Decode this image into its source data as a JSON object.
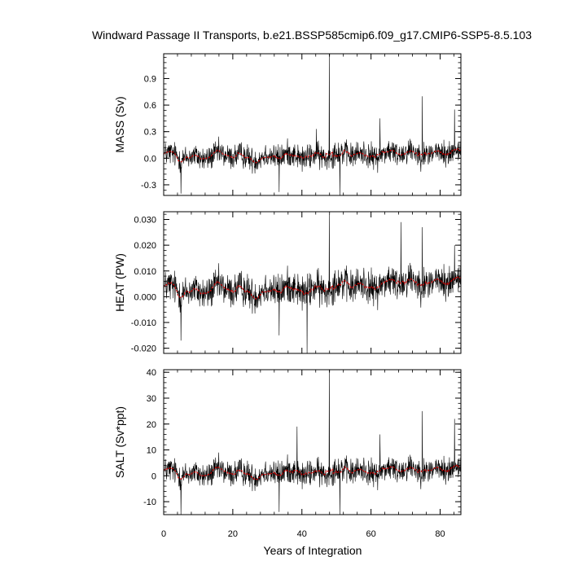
{
  "chart_data": {
    "type": "line",
    "title": "Windward Passage II Transports, b.e21.BSSP585cmip6.f09_g17.CMIP6-SSP5-8.5.103",
    "xlabel": "Years of Integration",
    "xlim": [
      0,
      86
    ],
    "x_ticks": [
      0,
      20,
      40,
      60,
      80
    ],
    "x_tick_labels": [
      "0",
      "20",
      "40",
      "60",
      "80"
    ],
    "series_colors": {
      "monthly": "#000000",
      "running_mean": "#cc0000"
    },
    "panels": [
      {
        "ylabel": "MASS (Sv)",
        "ylim": [
          -0.42,
          1.18
        ],
        "y_ticks": [
          -0.3,
          0.0,
          0.3,
          0.6,
          0.9
        ],
        "y_tick_labels": [
          "-0.3",
          "0.0",
          "0.3",
          "0.6",
          "0.9"
        ],
        "baseline": 0.02,
        "noise": 0.09,
        "trend": 0.045,
        "smooth_amp": 0.025,
        "spikes": [
          {
            "x": 47.9,
            "y": 1.18
          },
          {
            "x": 74.8,
            "y": 0.7
          },
          {
            "x": 44.2,
            "y": 0.33
          },
          {
            "x": 62.6,
            "y": 0.45
          },
          {
            "x": 51.0,
            "y": -0.42
          },
          {
            "x": 5.0,
            "y": -0.4
          },
          {
            "x": 33.4,
            "y": -0.38
          },
          {
            "x": 84.2,
            "y": 0.55
          }
        ]
      },
      {
        "ylabel": "HEAT (PW)",
        "ylim": [
          -0.022,
          0.033
        ],
        "y_ticks": [
          -0.02,
          -0.01,
          0.0,
          0.01,
          0.02,
          0.03
        ],
        "y_tick_labels": [
          "-0.020",
          "-0.010",
          "0.000",
          "0.010",
          "0.020",
          "0.030"
        ],
        "baseline": 0.0025,
        "noise": 0.0042,
        "trend": 0.0035,
        "smooth_amp": 0.0012,
        "spikes": [
          {
            "x": 47.9,
            "y": 0.032
          },
          {
            "x": 68.7,
            "y": 0.029
          },
          {
            "x": 74.8,
            "y": 0.027
          },
          {
            "x": 41.5,
            "y": -0.022
          },
          {
            "x": 5.0,
            "y": -0.017
          },
          {
            "x": 33.4,
            "y": -0.015
          },
          {
            "x": 84.2,
            "y": 0.02
          }
        ]
      },
      {
        "ylabel": "SALT (Sv*ppt)",
        "ylim": [
          -15,
          41
        ],
        "y_ticks": [
          -10,
          0,
          10,
          20,
          30,
          40
        ],
        "y_tick_labels": [
          "-10",
          "0",
          "10",
          "20",
          "30",
          "40"
        ],
        "baseline": 1.0,
        "noise": 3.2,
        "trend": 1.6,
        "smooth_amp": 0.9,
        "spikes": [
          {
            "x": 47.9,
            "y": 41
          },
          {
            "x": 74.8,
            "y": 25
          },
          {
            "x": 84.2,
            "y": 22
          },
          {
            "x": 38.6,
            "y": 19
          },
          {
            "x": 51.0,
            "y": -15
          },
          {
            "x": 5.0,
            "y": -15
          },
          {
            "x": 33.4,
            "y": -14
          },
          {
            "x": 62.6,
            "y": 16
          }
        ]
      }
    ]
  }
}
